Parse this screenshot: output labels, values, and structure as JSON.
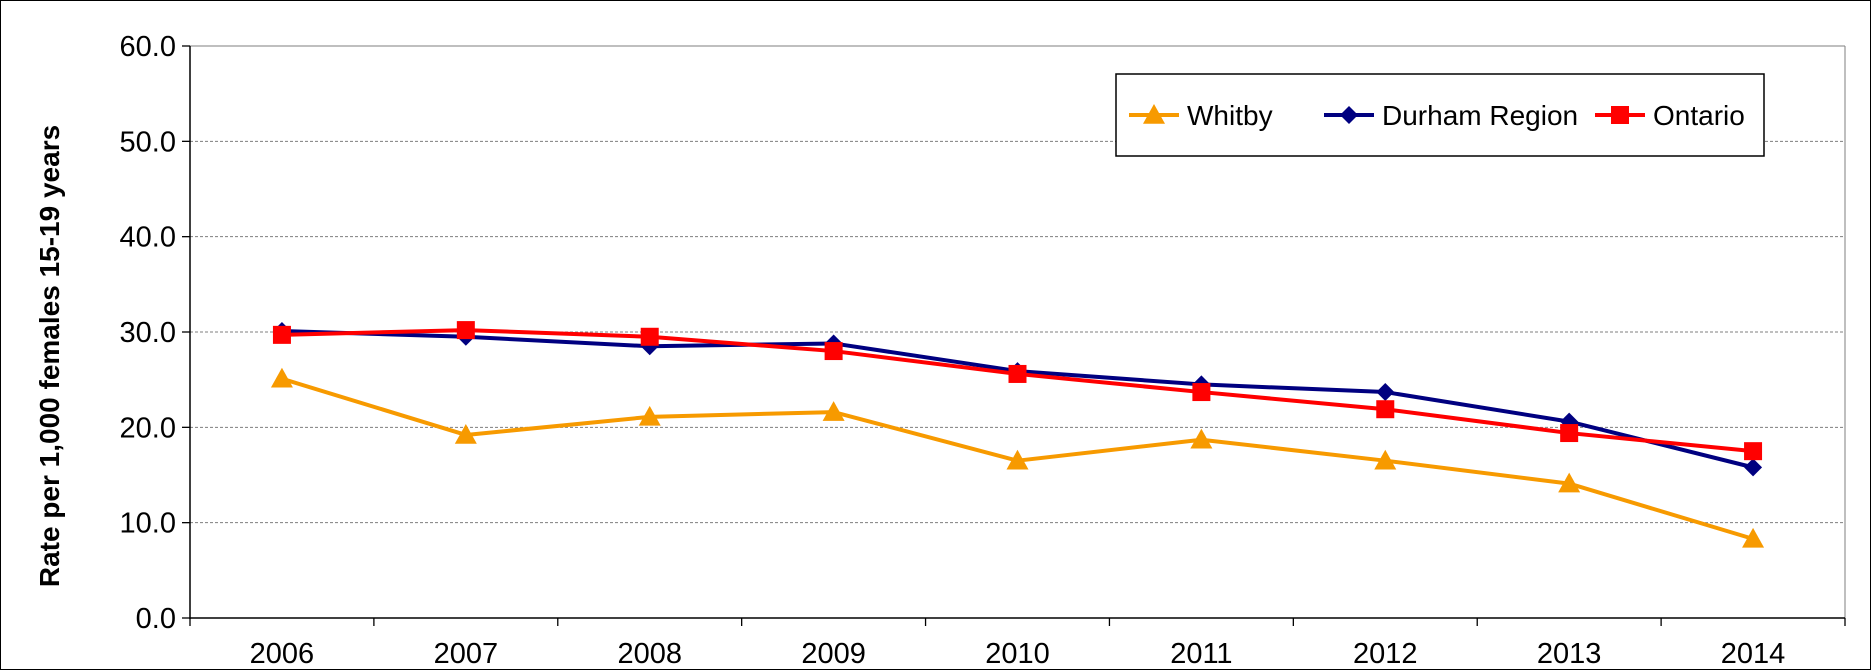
{
  "chart_data": {
    "type": "line",
    "title": "",
    "xlabel": "",
    "ylabel": "Rate per 1,000 females 15-19 years",
    "x": [
      "2006",
      "2007",
      "2008",
      "2009",
      "2010",
      "2011",
      "2012",
      "2013",
      "2014"
    ],
    "ylim": [
      0,
      60
    ],
    "yticks": [
      "0.0",
      "10.0",
      "20.0",
      "30.0",
      "40.0",
      "50.0",
      "60.0"
    ],
    "grid": true,
    "legend_position": "top-right",
    "series": [
      {
        "name": "Whitby",
        "color": "#F79A00",
        "marker": "triangle",
        "values": [
          25.1,
          19.2,
          21.1,
          21.6,
          16.5,
          18.7,
          16.5,
          14.1,
          8.3
        ]
      },
      {
        "name": "Durham Region",
        "color": "#000080",
        "marker": "diamond",
        "values": [
          30.1,
          29.5,
          28.5,
          28.8,
          25.9,
          24.5,
          23.7,
          20.6,
          15.8
        ]
      },
      {
        "name": "Ontario",
        "color": "#FF0000",
        "marker": "square",
        "values": [
          29.7,
          30.2,
          29.5,
          28.0,
          25.6,
          23.7,
          21.9,
          19.4,
          17.5
        ]
      }
    ]
  }
}
